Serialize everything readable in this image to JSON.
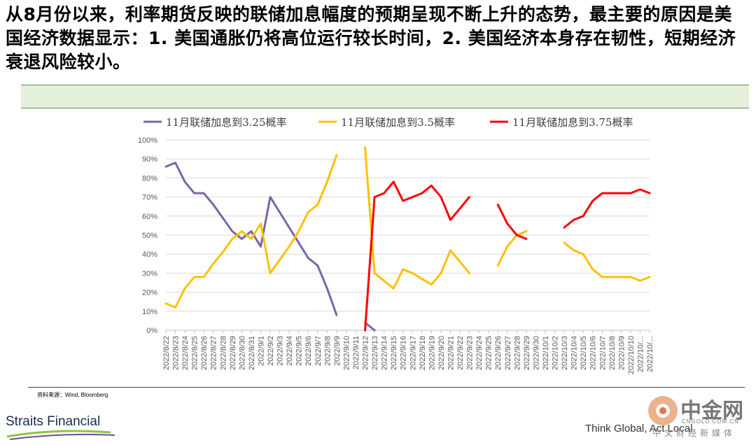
{
  "headline": "从8月份以来，利率期货反映的联储加息幅度的预期呈现不断上升的态势，最主要的原因是美国经济数据显示：1. 美国通胀仍将高位运行较长时间，2. 美国经济本身存在韧性，短期经济衰退风险较小。",
  "source": "资料来源：Wind, Bloomberg",
  "brand": "Straits Financial",
  "slogan": "Think Global, Act Local",
  "watermark": {
    "name": "中金网",
    "url": "CNGOLD.COM.CN",
    "tagline": "中文财经新媒体"
  },
  "colors": {
    "series1": "#7b64a8",
    "series2": "#ffc000",
    "series3": "#ff0000",
    "band": "#e5f0db"
  },
  "chart_data": {
    "type": "line",
    "title": "",
    "xlabel": "",
    "ylabel": "",
    "ylim": [
      0,
      100
    ],
    "yticks": [
      "0%",
      "10%",
      "20%",
      "30%",
      "40%",
      "50%",
      "60%",
      "70%",
      "80%",
      "90%",
      "100%"
    ],
    "legend_position": "top",
    "grid": true,
    "x": [
      "2022/8/22",
      "2022/8/23",
      "2022/8/24",
      "2022/8/25",
      "2022/8/26",
      "2022/8/27",
      "2022/8/28",
      "2022/8/29",
      "2022/8/30",
      "2022/8/31",
      "2022/9/1",
      "2022/9/2",
      "2022/9/3",
      "2022/9/4",
      "2022/9/5",
      "2022/9/6",
      "2022/9/7",
      "2022/9/8",
      "2022/9/9",
      "2022/9/10",
      "2022/9/11",
      "2022/9/12",
      "2022/9/13",
      "2022/9/14",
      "2022/9/15",
      "2022/9/16",
      "2022/9/17",
      "2022/9/18",
      "2022/9/19",
      "2022/9/20",
      "2022/9/21",
      "2022/9/22",
      "2022/9/23",
      "2022/9/24",
      "2022/9/25",
      "2022/9/26",
      "2022/9/27",
      "2022/9/28",
      "2022/9/29",
      "2022/9/30",
      "2022/10/1",
      "2022/10/2",
      "2022/10/3",
      "2022/10/4",
      "2022/10/5",
      "2022/10/6",
      "2022/10/7",
      "2022/10/8",
      "2022/10/9",
      "2022/10/10",
      "2022/10/...",
      "2022/10/..."
    ],
    "series": [
      {
        "name": "11月联储加息到3.25概率",
        "values": [
          86,
          88,
          78,
          72,
          72,
          66,
          59,
          52,
          48,
          52,
          44,
          70,
          62,
          54,
          46,
          38,
          34,
          22,
          8,
          null,
          null,
          4,
          0,
          null,
          null,
          null,
          null,
          null,
          null,
          null,
          null,
          null,
          null,
          null,
          null,
          null,
          null,
          null,
          null,
          null,
          null,
          null,
          null,
          null,
          null,
          null,
          null,
          null,
          null,
          null,
          null,
          null
        ]
      },
      {
        "name": "11月联储加息到3.5概率",
        "values": [
          14,
          12,
          22,
          28,
          28,
          35,
          41,
          48,
          52,
          48,
          56,
          30,
          37,
          44,
          52,
          62,
          66,
          78,
          92,
          null,
          null,
          96,
          30,
          26,
          22,
          32,
          30,
          27,
          24,
          30,
          42,
          36,
          30,
          null,
          null,
          34,
          44,
          50,
          52,
          null,
          null,
          null,
          46,
          42,
          40,
          32,
          28,
          28,
          28,
          28,
          26,
          28
        ]
      },
      {
        "name": "11月联储加息到3.75概率",
        "values": [
          null,
          null,
          null,
          null,
          null,
          null,
          null,
          null,
          null,
          null,
          null,
          null,
          null,
          null,
          null,
          null,
          null,
          null,
          null,
          null,
          null,
          0,
          70,
          72,
          78,
          68,
          70,
          72,
          76,
          70,
          58,
          64,
          70,
          null,
          null,
          66,
          56,
          50,
          48,
          null,
          null,
          null,
          54,
          58,
          60,
          68,
          72,
          72,
          72,
          72,
          74,
          72
        ]
      }
    ]
  }
}
